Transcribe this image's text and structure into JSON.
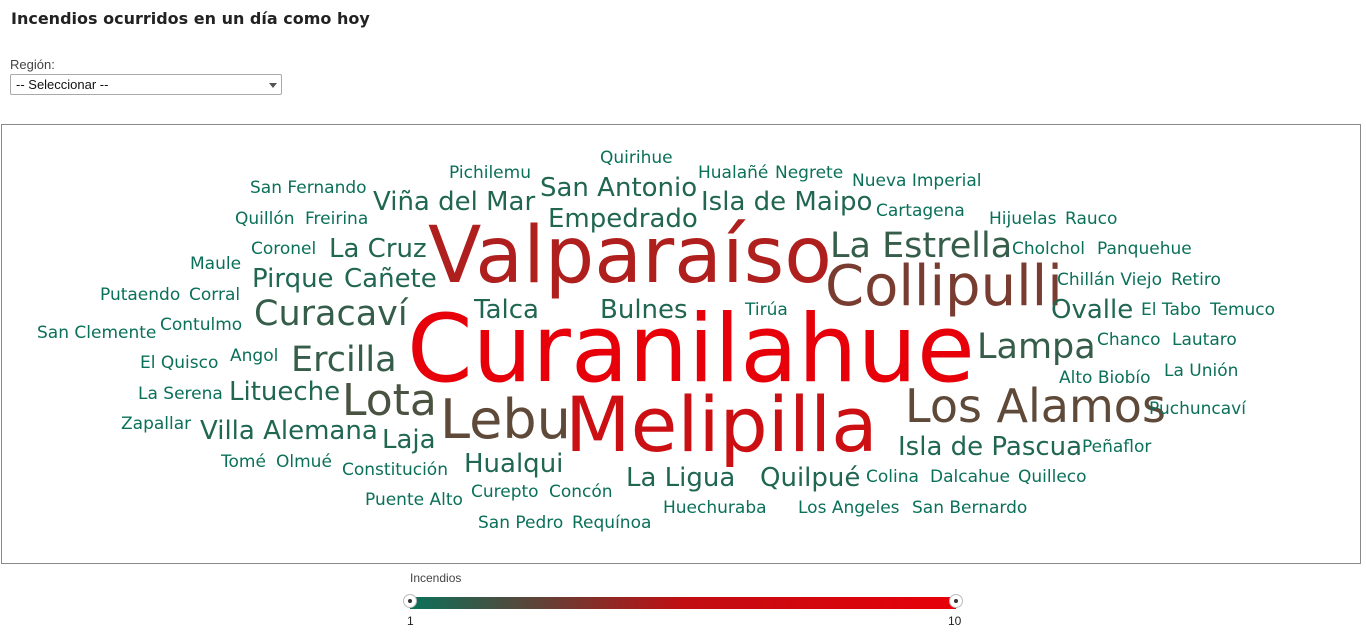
{
  "page": {
    "title": "Incendios ocurridos en un día como hoy"
  },
  "filter": {
    "label": "Región:",
    "selected": "-- Seleccionar --"
  },
  "legend": {
    "title": "Incendios",
    "min_label": "1",
    "max_label": "10",
    "min_value": 1,
    "max_value": 10,
    "color_low": "#0b7059",
    "color_high": "#e70009"
  },
  "cloud": {
    "words": [
      {
        "text": "Curanilahue",
        "value": 10
      },
      {
        "text": "Melipilla",
        "value": 9
      },
      {
        "text": "Valparaíso",
        "value": 8
      },
      {
        "text": "Collipulli",
        "value": 6
      },
      {
        "text": "Los Alamos",
        "value": 5
      },
      {
        "text": "Lebu",
        "value": 5
      },
      {
        "text": "Lota",
        "value": 4
      },
      {
        "text": "La Estrella",
        "value": 3
      },
      {
        "text": "Lampa",
        "value": 3
      },
      {
        "text": "Curacaví",
        "value": 3
      },
      {
        "text": "Ercilla",
        "value": 3
      },
      {
        "text": "Isla de Pascua",
        "value": 2
      },
      {
        "text": "Villa Alemana",
        "value": 2
      },
      {
        "text": "Pirque",
        "value": 2
      },
      {
        "text": "Cañete",
        "value": 2
      },
      {
        "text": "Viña del Mar",
        "value": 2
      },
      {
        "text": "San Antonio",
        "value": 2
      },
      {
        "text": "Empedrado",
        "value": 2
      },
      {
        "text": "Isla de Maipo",
        "value": 2
      },
      {
        "text": "La Cruz",
        "value": 2
      },
      {
        "text": "Talca",
        "value": 2
      },
      {
        "text": "Bulnes",
        "value": 2
      },
      {
        "text": "Ovalle",
        "value": 2
      },
      {
        "text": "Litueche",
        "value": 2
      },
      {
        "text": "Laja",
        "value": 2
      },
      {
        "text": "Hualqui",
        "value": 2
      },
      {
        "text": "La Ligua",
        "value": 2
      },
      {
        "text": "Quilpué",
        "value": 2
      },
      {
        "text": "Quirihue",
        "value": 1
      },
      {
        "text": "Pichilemu",
        "value": 1
      },
      {
        "text": "Hualañé",
        "value": 1
      },
      {
        "text": "Negrete",
        "value": 1
      },
      {
        "text": "Nueva Imperial",
        "value": 1
      },
      {
        "text": "San Fernando",
        "value": 1
      },
      {
        "text": "Cartagena",
        "value": 1
      },
      {
        "text": "Quillón",
        "value": 1
      },
      {
        "text": "Freirina",
        "value": 1
      },
      {
        "text": "Hijuelas",
        "value": 1
      },
      {
        "text": "Rauco",
        "value": 1
      },
      {
        "text": "Coronel",
        "value": 1
      },
      {
        "text": "Cholchol",
        "value": 1
      },
      {
        "text": "Panquehue",
        "value": 1
      },
      {
        "text": "Maule",
        "value": 1
      },
      {
        "text": "Chillán Viejo",
        "value": 1
      },
      {
        "text": "Retiro",
        "value": 1
      },
      {
        "text": "Putaendo",
        "value": 1
      },
      {
        "text": "Corral",
        "value": 1
      },
      {
        "text": "Tirúa",
        "value": 1
      },
      {
        "text": "El Tabo",
        "value": 1
      },
      {
        "text": "Temuco",
        "value": 1
      },
      {
        "text": "San Clemente",
        "value": 1
      },
      {
        "text": "Contulmo",
        "value": 1
      },
      {
        "text": "Chanco",
        "value": 1
      },
      {
        "text": "Lautaro",
        "value": 1
      },
      {
        "text": "Angol",
        "value": 1
      },
      {
        "text": "El Quisco",
        "value": 1
      },
      {
        "text": "Alto Biobío",
        "value": 1
      },
      {
        "text": "La Unión",
        "value": 1
      },
      {
        "text": "La Serena",
        "value": 1
      },
      {
        "text": "Puchuncaví",
        "value": 1
      },
      {
        "text": "Zapallar",
        "value": 1
      },
      {
        "text": "Peñaflor",
        "value": 1
      },
      {
        "text": "Tomé",
        "value": 1
      },
      {
        "text": "Olmué",
        "value": 1
      },
      {
        "text": "Constitución",
        "value": 1
      },
      {
        "text": "Colina",
        "value": 1
      },
      {
        "text": "Dalcahue",
        "value": 1
      },
      {
        "text": "Quilleco",
        "value": 1
      },
      {
        "text": "Curepto",
        "value": 1
      },
      {
        "text": "Concón",
        "value": 1
      },
      {
        "text": "Puente Alto",
        "value": 1
      },
      {
        "text": "Huechuraba",
        "value": 1
      },
      {
        "text": "Los Angeles",
        "value": 1
      },
      {
        "text": "San Bernardo",
        "value": 1
      },
      {
        "text": "San Pedro",
        "value": 1
      },
      {
        "text": "Requínoa",
        "value": 1
      }
    ]
  }
}
